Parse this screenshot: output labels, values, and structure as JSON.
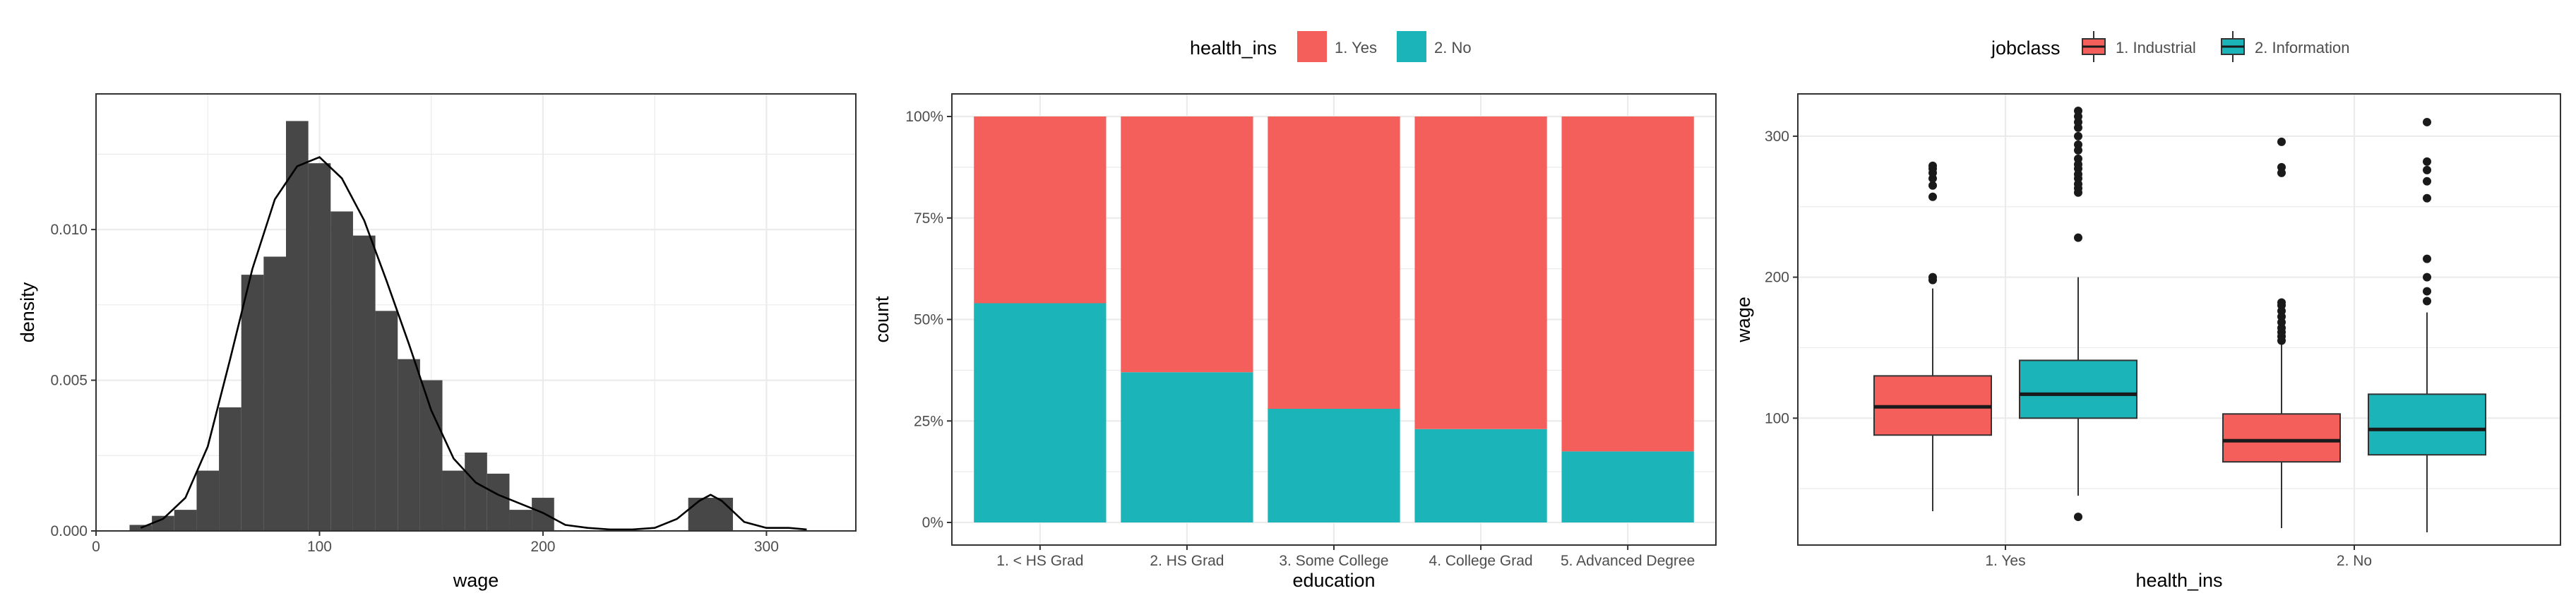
{
  "chart_data": [
    {
      "type": "histogram",
      "xlabel": "wage",
      "ylabel": "density",
      "xlim": [
        0,
        340
      ],
      "ylim": [
        0,
        0.0145
      ],
      "x_ticks": [
        0,
        100,
        200,
        300
      ],
      "x_tick_labels": [
        "0",
        "100",
        "200",
        "300"
      ],
      "y_ticks": [
        0,
        0.005,
        0.01
      ],
      "y_tick_labels": [
        "0.000",
        "0.005",
        "0.010"
      ],
      "grid": true,
      "bins": [
        {
          "x0": 15,
          "x1": 25,
          "density": 0.0002
        },
        {
          "x0": 25,
          "x1": 35,
          "density": 0.0005
        },
        {
          "x0": 35,
          "x1": 45,
          "density": 0.0007
        },
        {
          "x0": 45,
          "x1": 55,
          "density": 0.002
        },
        {
          "x0": 55,
          "x1": 65,
          "density": 0.0041
        },
        {
          "x0": 65,
          "x1": 75,
          "density": 0.0085
        },
        {
          "x0": 75,
          "x1": 85,
          "density": 0.0091
        },
        {
          "x0": 85,
          "x1": 95,
          "density": 0.0136
        },
        {
          "x0": 95,
          "x1": 105,
          "density": 0.0122
        },
        {
          "x0": 105,
          "x1": 115,
          "density": 0.0106
        },
        {
          "x0": 115,
          "x1": 125,
          "density": 0.0098
        },
        {
          "x0": 125,
          "x1": 135,
          "density": 0.0073
        },
        {
          "x0": 135,
          "x1": 145,
          "density": 0.0057
        },
        {
          "x0": 145,
          "x1": 155,
          "density": 0.005
        },
        {
          "x0": 155,
          "x1": 165,
          "density": 0.002
        },
        {
          "x0": 165,
          "x1": 175,
          "density": 0.0026
        },
        {
          "x0": 175,
          "x1": 185,
          "density": 0.0019
        },
        {
          "x0": 185,
          "x1": 195,
          "density": 0.0007
        },
        {
          "x0": 195,
          "x1": 205,
          "density": 0.0011
        },
        {
          "x0": 265,
          "x1": 285,
          "density": 0.0011
        }
      ],
      "density_curve": [
        [
          20,
          0.0001
        ],
        [
          30,
          0.0004
        ],
        [
          40,
          0.0011
        ],
        [
          50,
          0.0028
        ],
        [
          60,
          0.0057
        ],
        [
          70,
          0.0087
        ],
        [
          80,
          0.011
        ],
        [
          90,
          0.0121
        ],
        [
          100,
          0.0124
        ],
        [
          110,
          0.0117
        ],
        [
          120,
          0.0103
        ],
        [
          130,
          0.0083
        ],
        [
          140,
          0.0062
        ],
        [
          150,
          0.004
        ],
        [
          160,
          0.0024
        ],
        [
          170,
          0.0016
        ],
        [
          180,
          0.0012
        ],
        [
          190,
          0.0009
        ],
        [
          200,
          0.0006
        ],
        [
          210,
          0.0002
        ],
        [
          220,
          0.0001
        ],
        [
          230,
          5e-05
        ],
        [
          240,
          5e-05
        ],
        [
          250,
          0.0001
        ],
        [
          260,
          0.0004
        ],
        [
          270,
          0.001
        ],
        [
          275,
          0.0012
        ],
        [
          280,
          0.001
        ],
        [
          290,
          0.0003
        ],
        [
          300,
          0.0001
        ],
        [
          310,
          0.0001
        ],
        [
          318,
          5e-05
        ]
      ]
    },
    {
      "type": "bar",
      "stacked": "fill",
      "xlabel": "education",
      "ylabel": "count",
      "categories": [
        "1. < HS Grad",
        "2. HS Grad",
        "3. Some College",
        "4. College Grad",
        "5. Advanced Degree"
      ],
      "y_ticks": [
        0,
        0.25,
        0.5,
        0.75,
        1
      ],
      "y_tick_labels": [
        "0%",
        "25%",
        "50%",
        "75%",
        "100%"
      ],
      "ylim": [
        0,
        1
      ],
      "legend_title": "health_ins",
      "legend_position": "top",
      "grid": true,
      "series": [
        {
          "name": "2. No",
          "color": "#1ab4b9",
          "values": [
            0.54,
            0.37,
            0.28,
            0.23,
            0.175
          ]
        },
        {
          "name": "1. Yes",
          "color": "#f45f5b",
          "values": [
            0.46,
            0.63,
            0.72,
            0.77,
            0.825
          ]
        }
      ]
    },
    {
      "type": "boxplot",
      "xlabel": "health_ins",
      "ylabel": "wage",
      "categories": [
        "1. Yes",
        "2. No"
      ],
      "ylim": [
        10,
        330
      ],
      "y_ticks": [
        100,
        200,
        300
      ],
      "y_tick_labels": [
        "100",
        "200",
        "300"
      ],
      "legend_title": "jobclass",
      "legend_position": "top",
      "grid": true,
      "series": [
        {
          "name": "1. Industrial",
          "color": "#f45f5b",
          "boxes": [
            {
              "q1": 88,
              "median": 108,
              "q3": 130,
              "whisker_low": 34,
              "whisker_high": 192,
              "outliers": [
                198,
                200,
                257,
                265,
                270,
                274,
                277,
                279
              ]
            },
            {
              "q1": 69,
              "median": 84,
              "q3": 103,
              "whisker_low": 22,
              "whisker_high": 152,
              "outliers": [
                155,
                158,
                161,
                164,
                168,
                172,
                176,
                180,
                182,
                274,
                278,
                296
              ]
            }
          ]
        },
        {
          "name": "2. Information",
          "color": "#1ab4b9",
          "boxes": [
            {
              "q1": 100,
              "median": 117,
              "q3": 141,
              "whisker_low": 45,
              "whisker_high": 200,
              "outliers": [
                30,
                228,
                260,
                263,
                266,
                270,
                273,
                277,
                280,
                284,
                290,
                294,
                300,
                306,
                310,
                314,
                318
              ]
            },
            {
              "q1": 74,
              "median": 92,
              "q3": 117,
              "whisker_low": 19,
              "whisker_high": 175,
              "outliers": [
                183,
                190,
                200,
                213,
                256,
                268,
                276,
                282,
                310
              ]
            }
          ]
        }
      ]
    }
  ]
}
